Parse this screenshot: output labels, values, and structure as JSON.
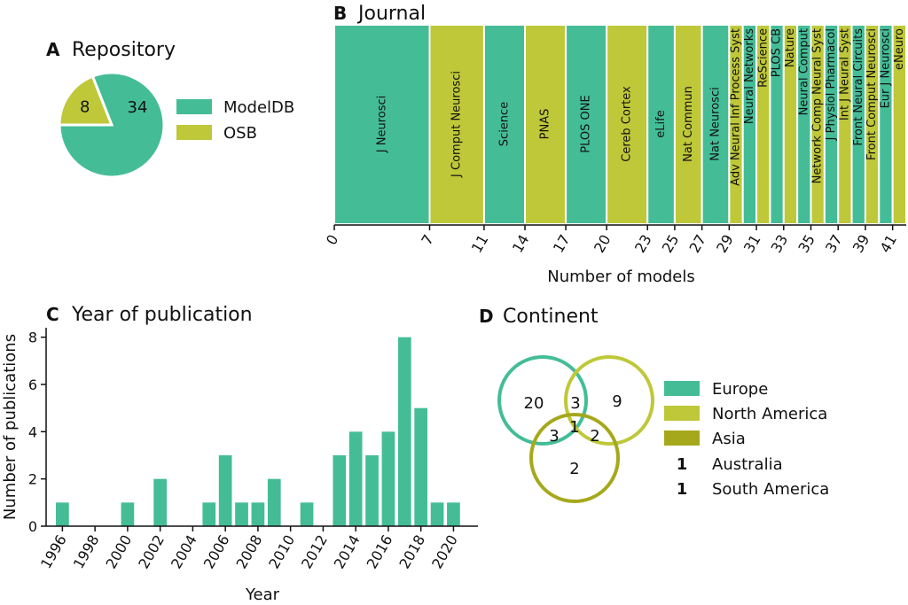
{
  "colors": {
    "green": "#44bd97",
    "lime": "#bfc839",
    "olive": "#a6a81c",
    "axis": "#111111"
  },
  "panels": {
    "A": {
      "letter": "A",
      "title": "Repository"
    },
    "B": {
      "letter": "B",
      "title": "Journal"
    },
    "C": {
      "letter": "C",
      "title": "Year of publication"
    },
    "D": {
      "letter": "D",
      "title": "Continent"
    }
  },
  "chart_data": [
    {
      "id": "repository",
      "type": "pie",
      "title": "Repository",
      "labels": [
        "ModelDB",
        "OSB"
      ],
      "values": [
        34,
        8
      ],
      "colors": [
        "#44bd97",
        "#bfc839"
      ],
      "legend": "right"
    },
    {
      "id": "journal",
      "type": "bar",
      "orientation": "stacked-horizontal",
      "title": "Journal",
      "xlabel": "Number of models",
      "xlim": [
        0,
        42
      ],
      "ticks": [
        "0",
        "7",
        "11",
        "14",
        "17",
        "20",
        "23",
        "25",
        "27",
        "29",
        "31",
        "33",
        "35",
        "37",
        "39",
        "41"
      ],
      "categories": [
        "J Neurosci",
        "J Comput Neurosci",
        "Science",
        "PNAS",
        "PLOS ONE",
        "Cereb Cortex",
        "eLife",
        "Nat Commun",
        "Nat Neurosci",
        "Adv Neural Inf Process Syst",
        "Neural Networks",
        "ReScience",
        "PLOS CB",
        "Nature",
        "Neural Comput",
        "Network Comp Neural Syst",
        "J Physiol Pharmacol",
        "Int J Neural Syst",
        "Front Neural Circuits",
        "Front Comput Neurosci",
        "Eur J Neurosci",
        "eNeuro"
      ],
      "values": [
        7,
        4,
        3,
        3,
        3,
        3,
        2,
        2,
        2,
        1,
        1,
        1,
        1,
        1,
        1,
        1,
        1,
        1,
        1,
        1,
        1,
        1
      ]
    },
    {
      "id": "year",
      "type": "bar",
      "title": "Year of publication",
      "xlabel": "Year",
      "ylabel": "Number of publications",
      "x": [
        1996,
        1997,
        1998,
        1999,
        2000,
        2001,
        2002,
        2003,
        2004,
        2005,
        2006,
        2007,
        2008,
        2009,
        2010,
        2011,
        2012,
        2013,
        2014,
        2015,
        2016,
        2017,
        2018,
        2019,
        2020
      ],
      "values": [
        1,
        0,
        0,
        0,
        1,
        0,
        2,
        0,
        0,
        1,
        3,
        1,
        1,
        2,
        0,
        1,
        0,
        3,
        4,
        3,
        4,
        8,
        5,
        1,
        1
      ],
      "xticks": [
        "1996",
        "1998",
        "2000",
        "2002",
        "2004",
        "2006",
        "2008",
        "2010",
        "2012",
        "2014",
        "2016",
        "2018",
        "2020"
      ],
      "yticks": [
        "0",
        "2",
        "4",
        "6",
        "8"
      ],
      "ylim": [
        0,
        8.4
      ]
    },
    {
      "id": "continent",
      "type": "venn",
      "title": "Continent",
      "sets": [
        "Europe",
        "North America",
        "Asia"
      ],
      "regions": [
        {
          "sets": [
            "Europe"
          ],
          "value": "20"
        },
        {
          "sets": [
            "North America"
          ],
          "value": "9"
        },
        {
          "sets": [
            "Asia"
          ],
          "value": "2"
        },
        {
          "sets": [
            "Europe",
            "North America"
          ],
          "value": "3"
        },
        {
          "sets": [
            "Europe",
            "Asia"
          ],
          "value": "3"
        },
        {
          "sets": [
            "North America",
            "Asia"
          ],
          "value": "2"
        },
        {
          "sets": [
            "Europe",
            "North America",
            "Asia"
          ],
          "value": "1"
        }
      ],
      "extra": [
        {
          "label": "Australia",
          "value": "1"
        },
        {
          "label": "South America",
          "value": "1"
        }
      ]
    }
  ]
}
